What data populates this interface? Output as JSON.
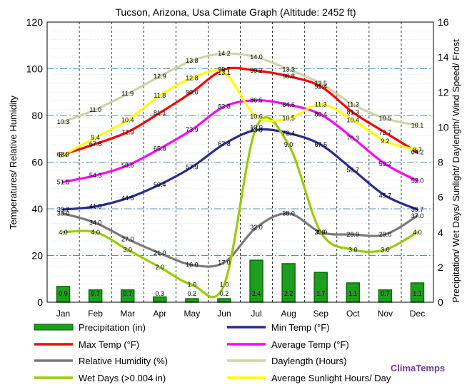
{
  "chart_data": {
    "type": "bar+line",
    "title": "Tucson, Arizona, Usa Climate Graph (Altitude: 2452 ft)",
    "ylabel_left": "Temperatures/ Relative Humidity",
    "ylabel_right": "Precipitation/ Wet Days/ Sunlight/ Daylength/ Wind Speed/ Frost",
    "ylim_left": [
      0,
      120
    ],
    "yticks_left": [
      "0",
      "20",
      "40",
      "60",
      "80",
      "100",
      "120"
    ],
    "ylim_right": [
      0,
      16
    ],
    "yticks_right": [
      "0",
      "2",
      "4",
      "6",
      "8",
      "10",
      "12",
      "14",
      "16"
    ],
    "categories": [
      "Jan",
      "Feb",
      "Mar",
      "Apr",
      "May",
      "Jun",
      "Jul",
      "Aug",
      "Sep",
      "Oct",
      "Nov",
      "Dec"
    ],
    "bars": {
      "name": "Precipitation (in)",
      "axis": "right",
      "color": "#1e9e1e",
      "values": [
        0.9,
        0.7,
        0.7,
        0.3,
        0.2,
        0.2,
        2.4,
        2.2,
        1.7,
        1.1,
        0.7,
        1.1
      ],
      "labels": [
        "0.9",
        "0.7",
        "0.7",
        "0.3",
        "0.2",
        "0.2",
        "2.4",
        "2.2",
        "1.7",
        "1.1",
        "0.7",
        "1.1"
      ]
    },
    "series": [
      {
        "name": "Min Temp (°F)",
        "axis": "left",
        "color": "#2b2b8f",
        "values": [
          39.7,
          41.0,
          44.6,
          50.4,
          57.9,
          67.8,
          73.8,
          72.4,
          67.5,
          56.7,
          45.7,
          39.7
        ],
        "labels": [
          "39.7",
          "41.0",
          "44.6",
          "50.4",
          "57.9",
          "67.8",
          "73.8",
          "72.4",
          "67.5",
          "56.7",
          "45.7",
          "39.7"
        ]
      },
      {
        "name": "Max Temp (°F)",
        "axis": "left",
        "color": "#ff0000",
        "values": [
          63.3,
          67.8,
          72.9,
          81.1,
          90.0,
          99.7,
          99.2,
          96.8,
          92.4,
          81.3,
          72.7,
          64.2
        ],
        "labels": [
          "63.3",
          "67.8",
          "72.9",
          "81.1",
          "90.0",
          "99.7",
          "99.2",
          "96.8",
          "92.4",
          "81.3",
          "72.7",
          "64.2"
        ]
      },
      {
        "name": "Average Temp (°F)",
        "axis": "left",
        "color": "#ff00ff",
        "values": [
          51.5,
          54.3,
          58.6,
          65.8,
          73.9,
          83.8,
          86.5,
          84.6,
          80.4,
          70.3,
          59.2,
          52.0
        ],
        "labels": [
          "51.5",
          "54.3",
          "58.6",
          "65.8",
          "73.9",
          "83.8",
          "86.5",
          "84.6",
          "80.4",
          "70.3",
          "59.2",
          "52.0"
        ]
      },
      {
        "name": "Relative Humidity (%)",
        "axis": "left",
        "color": "#7a7a7a",
        "values": [
          38.0,
          34.0,
          27.0,
          21.0,
          16.0,
          17.0,
          32.0,
          38.0,
          30.0,
          29.0,
          29.0,
          37.0
        ],
        "labels": [
          "38.0",
          "34.0",
          "27.0",
          "21.0",
          "16.0",
          "17.0",
          "32.0",
          "38.0",
          "30.0",
          "29.0",
          "29.0",
          "37.0"
        ]
      },
      {
        "name": "Daylength (Hours)",
        "axis": "right",
        "color": "#d2d2a8",
        "values": [
          10.3,
          11.0,
          11.9,
          12.9,
          13.8,
          14.2,
          14.0,
          13.3,
          12.5,
          11.3,
          10.5,
          10.1
        ],
        "labels": [
          "10.3",
          "11.0",
          "11.9",
          "12.9",
          "13.8",
          "14.2",
          "14.0",
          "13.3",
          "12.5",
          "11.3",
          "10.5",
          "10.1"
        ]
      },
      {
        "name": "Wet Days (>0.004 in)",
        "axis": "right",
        "color": "#99cc00",
        "values": [
          4.0,
          4.0,
          3.0,
          2.0,
          1.0,
          1.0,
          10.0,
          9.0,
          4.0,
          3.0,
          3.0,
          4.0
        ],
        "labels": [
          "4.0",
          "4.0",
          "3.0",
          "2.0",
          "1.0",
          "1.0",
          "10.0",
          "9.0",
          "4.0",
          "3.0",
          "3.0",
          "4.0"
        ]
      },
      {
        "name": "Average Sunlight Hours/ Day",
        "axis": "right",
        "color": "#ffff00",
        "values": [
          8.4,
          9.4,
          10.4,
          11.8,
          12.8,
          13.1,
          10.6,
          10.5,
          11.3,
          10.4,
          9.2,
          8.7
        ],
        "labels": [
          "8.4",
          "9.4",
          "10.4",
          "11.8",
          "12.8",
          "13.1",
          "10.6",
          "10.5",
          "11.3",
          "10.4",
          "9.2",
          "8.7"
        ]
      }
    ],
    "legend": [
      {
        "name": "Precipitation (in)",
        "kind": "bar",
        "color": "#1e9e1e"
      },
      {
        "name": "Min Temp (°F)",
        "kind": "line",
        "color": "#2b2b8f"
      },
      {
        "name": "Max Temp (°F)",
        "kind": "line",
        "color": "#ff0000"
      },
      {
        "name": "Average Temp (°F)",
        "kind": "line",
        "color": "#ff00ff"
      },
      {
        "name": "Relative Humidity (%)",
        "kind": "line",
        "color": "#7a7a7a"
      },
      {
        "name": "Daylength (Hours)",
        "kind": "line",
        "color": "#d2d2a8"
      },
      {
        "name": "Wet Days (>0.004 in)",
        "kind": "line",
        "color": "#99cc00"
      },
      {
        "name": "Average Sunlight Hours/ Day",
        "kind": "line",
        "color": "#ffff00"
      }
    ],
    "legend_placement": "bottom",
    "grid": true,
    "brand": "ClimaTemps"
  }
}
